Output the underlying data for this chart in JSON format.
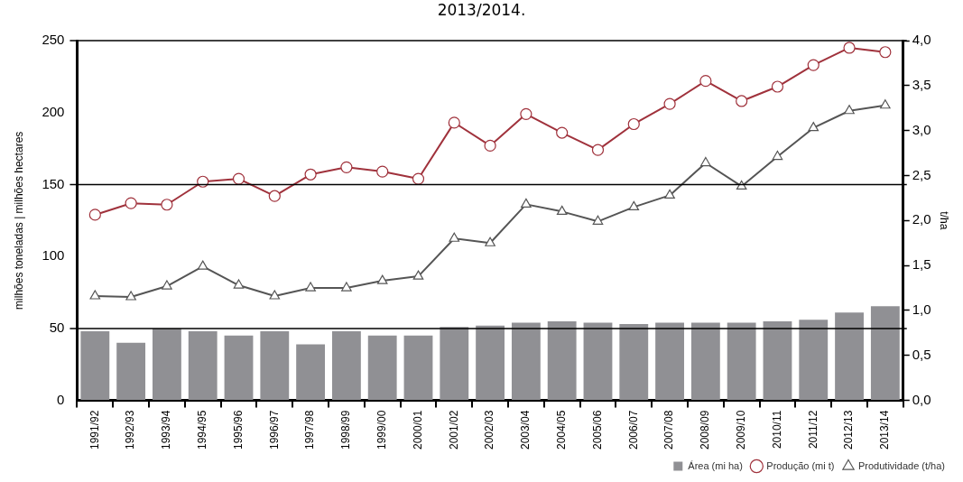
{
  "chart_data": {
    "type": "bar",
    "title": "2013/2014.",
    "ylabel": "milhões toneladas | milhões hectares",
    "y2label": "t/ha",
    "categories": [
      "1991/92",
      "1992/93",
      "1993/94",
      "1994/95",
      "1995/96",
      "1996/97",
      "1997/98",
      "1998/99",
      "1999/00",
      "2000/01",
      "2001/02",
      "2002/03",
      "2003/04",
      "2004/05",
      "2005/06",
      "2006/07",
      "2007/08",
      "2008/09",
      "2009/10",
      "2010/11",
      "2011/12",
      "2012/13",
      "2013/14"
    ],
    "series": [
      {
        "name": "Área (mi ha)",
        "color": "#909094",
        "values": [
          48,
          40,
          50,
          48,
          45,
          48,
          39,
          48,
          45,
          45,
          51,
          52,
          54,
          55,
          54,
          53,
          54,
          54,
          54,
          55,
          56,
          61,
          65.5
        ]
      },
      {
        "name": "Produção (mi t)",
        "type": "line",
        "color": "#a0323c",
        "marker": "circle",
        "values": [
          129,
          137,
          136,
          152,
          154,
          142,
          157,
          162,
          159,
          154,
          193,
          177,
          199,
          186,
          174,
          192,
          206,
          222,
          208,
          218,
          233,
          245,
          242
        ]
      },
      {
        "name": "Produtividade (t/ha)",
        "type": "line",
        "axis": "y2",
        "color": "#555555",
        "marker": "triangle",
        "values": [
          1.16,
          1.15,
          1.27,
          1.49,
          1.28,
          1.16,
          1.25,
          1.25,
          1.33,
          1.38,
          1.8,
          1.75,
          2.18,
          2.1,
          1.99,
          2.15,
          2.28,
          2.64,
          2.38,
          2.71,
          3.03,
          3.22,
          3.28
        ]
      }
    ],
    "ylim": [
      0,
      250
    ],
    "yticks": [
      0,
      50,
      100,
      150,
      200,
      250
    ],
    "y2lim": [
      0,
      4
    ],
    "y2ticks": [
      {
        "value": 0,
        "label": "0,0"
      },
      {
        "value": 0.5,
        "label": "0,5"
      },
      {
        "value": 1,
        "label": "1,0"
      },
      {
        "value": 1.5,
        "label": "1,5"
      },
      {
        "value": 2,
        "label": "2,0"
      },
      {
        "value": 2.5,
        "label": "2,5"
      },
      {
        "value": 3,
        "label": "3,0"
      },
      {
        "value": 3.5,
        "label": "3,5"
      },
      {
        "value": 4,
        "label": "4,0"
      }
    ],
    "ref_lines": [
      {
        "axis": "y",
        "value": 50,
        "color": "#000000"
      },
      {
        "axis": "y",
        "value": 150,
        "color": "#000000"
      }
    ],
    "grid": false,
    "legend": "bottom right"
  }
}
